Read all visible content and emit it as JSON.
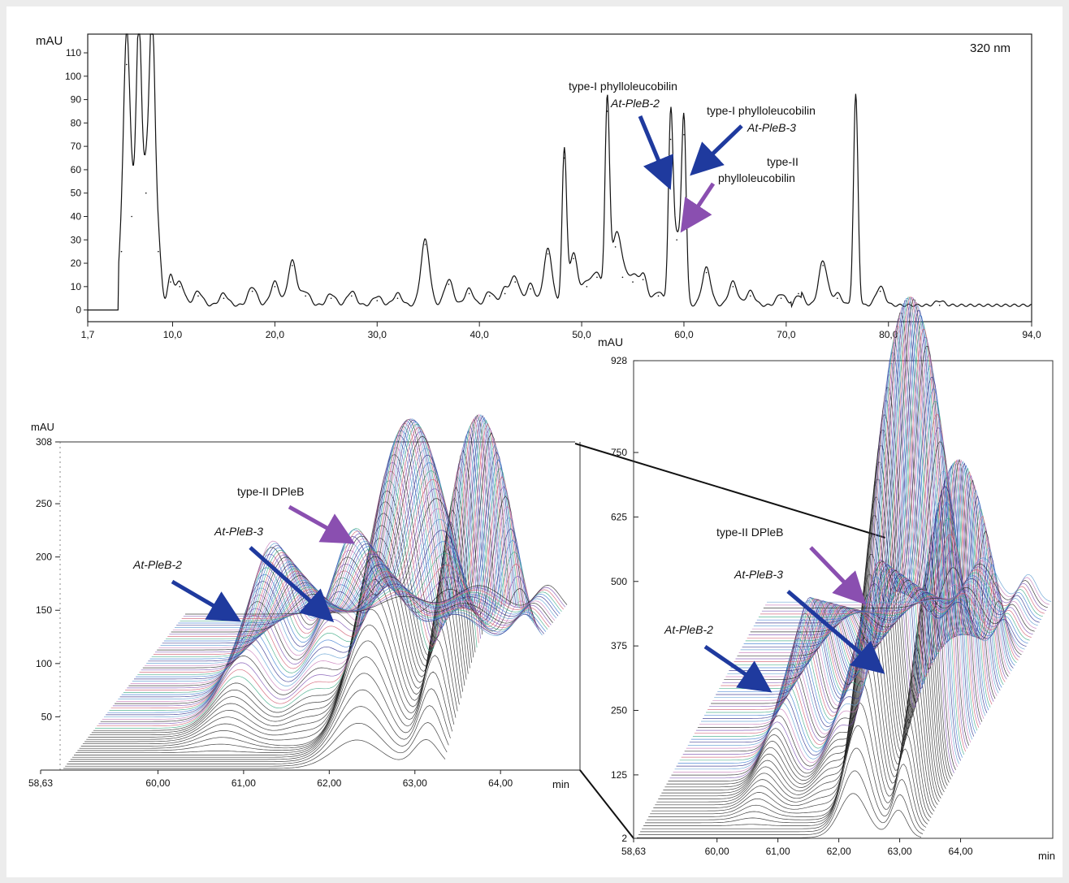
{
  "chart_data": [
    {
      "type": "line",
      "panel": "top chromatogram",
      "ylabel": "mAU",
      "annotation_wavelength": "320 nm",
      "xlim": [
        1.7,
        94.0
      ],
      "ylim": [
        -5,
        118
      ],
      "x_ticks": [
        "1,7",
        "10,0",
        "20,0",
        "30,0",
        "40,0",
        "50,0",
        "60,0",
        "70,0",
        "80,0",
        "94,0"
      ],
      "x_tick_values": [
        1.7,
        10,
        20,
        30,
        40,
        50,
        60,
        70,
        80,
        94
      ],
      "y_ticks": [
        0,
        10,
        20,
        30,
        40,
        50,
        60,
        70,
        80,
        90,
        100,
        110
      ],
      "baseline": 0,
      "peaks": [
        {
          "x": 5.0,
          "y": 25
        },
        {
          "x": 5.5,
          "y": 105
        },
        {
          "x": 6.0,
          "y": 40
        },
        {
          "x": 6.7,
          "y": 120
        },
        {
          "x": 7.4,
          "y": 50
        },
        {
          "x": 8.0,
          "y": 120
        },
        {
          "x": 8.6,
          "y": 25
        },
        {
          "x": 9.8,
          "y": 12
        },
        {
          "x": 10.7,
          "y": 10
        },
        {
          "x": 12.5,
          "y": 6
        },
        {
          "x": 15.0,
          "y": 5
        },
        {
          "x": 17.8,
          "y": 8
        },
        {
          "x": 20.0,
          "y": 10
        },
        {
          "x": 21.7,
          "y": 19
        },
        {
          "x": 23.0,
          "y": 6
        },
        {
          "x": 25.5,
          "y": 5
        },
        {
          "x": 27.5,
          "y": 6
        },
        {
          "x": 30.0,
          "y": 4
        },
        {
          "x": 32.0,
          "y": 5
        },
        {
          "x": 34.7,
          "y": 28
        },
        {
          "x": 37.0,
          "y": 11
        },
        {
          "x": 39.0,
          "y": 7
        },
        {
          "x": 41.0,
          "y": 6
        },
        {
          "x": 42.5,
          "y": 7
        },
        {
          "x": 43.5,
          "y": 12
        },
        {
          "x": 45.0,
          "y": 9
        },
        {
          "x": 46.7,
          "y": 24
        },
        {
          "x": 48.3,
          "y": 65
        },
        {
          "x": 49.2,
          "y": 22
        },
        {
          "x": 50.5,
          "y": 10
        },
        {
          "x": 51.5,
          "y": 14
        },
        {
          "x": 52.5,
          "y": 85
        },
        {
          "x": 53.3,
          "y": 27
        },
        {
          "x": 54.0,
          "y": 14
        },
        {
          "x": 55.0,
          "y": 12
        },
        {
          "x": 56.0,
          "y": 13
        },
        {
          "x": 57.5,
          "y": 6
        },
        {
          "x": 58.7,
          "y": 73
        },
        {
          "x": 59.3,
          "y": 30
        },
        {
          "x": 60.0,
          "y": 75
        },
        {
          "x": 62.2,
          "y": 16
        },
        {
          "x": 64.8,
          "y": 10
        },
        {
          "x": 66.5,
          "y": 6
        },
        {
          "x": 69.5,
          "y": 5
        },
        {
          "x": 71.2,
          "y": 7
        },
        {
          "x": 73.6,
          "y": 19
        },
        {
          "x": 75.0,
          "y": 5
        },
        {
          "x": 76.8,
          "y": 90
        },
        {
          "x": 79.2,
          "y": 8
        },
        {
          "x": 85.0,
          "y": 2
        }
      ],
      "annotations": [
        {
          "lines": [
            "type-I phylloleucobilin",
            "At-PleB-2"
          ],
          "target_x": 58.7,
          "arrow": "blue"
        },
        {
          "lines": [
            "type-I phylloleucobilin",
            "At-PleB-3"
          ],
          "target_x": 60.0,
          "arrow": "blue"
        },
        {
          "lines": [
            "type-II",
            "phylloleucobilin"
          ],
          "target_x": 59.3,
          "arrow": "purple"
        }
      ],
      "extra_label_axis": "mAU"
    },
    {
      "type": "area",
      "panel": "bottom-left 3D diode-array plot",
      "ylabel": "mAU",
      "xlabel": "min",
      "xlim": [
        58.63,
        64.7
      ],
      "ylim": [
        0,
        308
      ],
      "x_ticks": [
        "58,63",
        "60,00",
        "61,00",
        "62,00",
        "63,00",
        "64,00"
      ],
      "x_tick_values": [
        58.63,
        60.0,
        61.0,
        62.0,
        63.0,
        64.0
      ],
      "y_ticks": [
        "308",
        "250",
        "200",
        "150",
        "100",
        "50"
      ],
      "y_tick_values": [
        308,
        250,
        200,
        150,
        100,
        50
      ],
      "peaks": [
        {
          "label": "At-PleB-2",
          "x": 60.9,
          "max": 150,
          "arrow": "blue"
        },
        {
          "label": "At-PleB-3",
          "x": 62.1,
          "max": 155,
          "arrow": "blue"
        },
        {
          "label": "type-II DPleB",
          "x": 63.3,
          "max": 300,
          "arrow": "purple"
        },
        {
          "label": "",
          "x": 64.4,
          "max": 300
        }
      ]
    },
    {
      "type": "area",
      "panel": "bottom-right 3D diode-array plot (zoom)",
      "ylabel": "mAU",
      "xlabel": "min",
      "xlim": [
        58.63,
        64.9
      ],
      "ylim": [
        2,
        928
      ],
      "x_ticks": [
        "58,63",
        "60,00",
        "61,00",
        "62,00",
        "63,00",
        "64,00"
      ],
      "x_tick_values": [
        58.63,
        60.0,
        61.0,
        62.0,
        63.0,
        64.0
      ],
      "y_ticks": [
        "928",
        "750",
        "625",
        "500",
        "375",
        "250",
        "125",
        "2"
      ],
      "y_tick_values": [
        928,
        750,
        625,
        500,
        375,
        250,
        125,
        2
      ],
      "peaks": [
        {
          "label": "At-PleB-2",
          "x": 61.0,
          "max": 250,
          "arrow": "blue"
        },
        {
          "label": "At-PleB-3",
          "x": 62.4,
          "max": 300,
          "arrow": "blue"
        },
        {
          "label": "type-II DPleB",
          "x": 63.4,
          "max": 900,
          "arrow": "purple"
        },
        {
          "label": "",
          "x": 64.4,
          "max": 560
        }
      ]
    }
  ],
  "colors": {
    "blue_arrow": "#1f3a9e",
    "purple_arrow": "#8a4fb0",
    "trace": "#111111"
  }
}
